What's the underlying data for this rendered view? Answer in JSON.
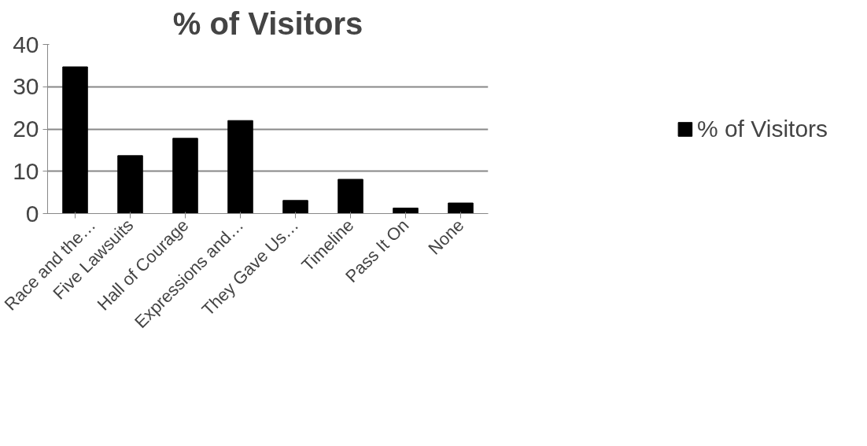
{
  "chart_data": {
    "type": "bar",
    "title": "% of Visitors",
    "categories": [
      "Race and the…",
      "Five Lawsuits",
      "Hall of Courage",
      "Expressions and…",
      "They Gave Us…",
      "Timeline",
      "Pass It On",
      "None"
    ],
    "series": [
      {
        "name": "% of Visitors",
        "color": "#000000",
        "values": [
          34.7,
          13.7,
          17.8,
          22.0,
          3.1,
          8.1,
          1.3,
          2.5
        ]
      }
    ],
    "ylim": [
      0,
      40
    ],
    "yticks": [
      0,
      10,
      20,
      30,
      40
    ],
    "grid": "y",
    "legend": "right"
  }
}
